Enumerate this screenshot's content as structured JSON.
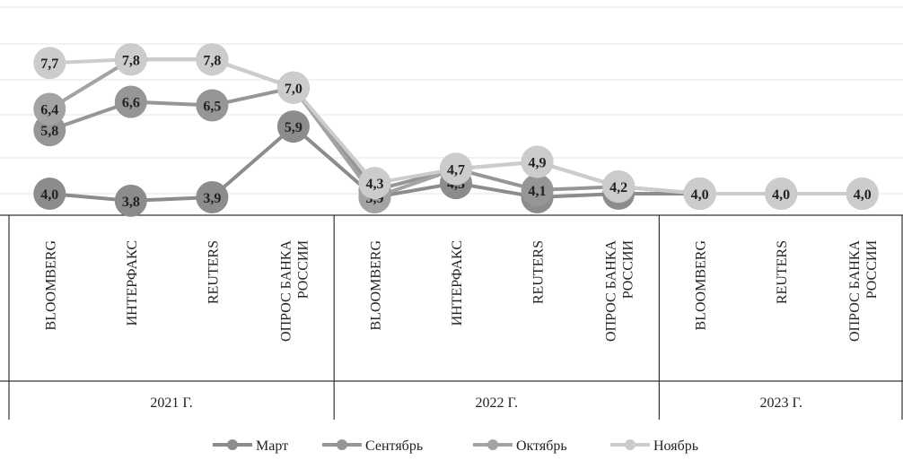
{
  "chart_data": {
    "type": "line",
    "title": "",
    "xlabel": "",
    "ylabel": "",
    "ylim": [
      3,
      8.7
    ],
    "grid": true,
    "legend_position": "bottom",
    "categories": [
      "BLOOMBERG",
      "ИНТЕРФАКС",
      "REUTERS",
      "ОПРОС БАНКА РОССИИ",
      "BLOOMBERG",
      "ИНТЕРФАКС",
      "REUTERS",
      "ОПРОС БАНКА РОССИИ",
      "BLOOMBERG",
      "REUTERS",
      "ОПРОС БАНКА РОССИИ"
    ],
    "category_lines": [
      [
        "BLOOMBERG"
      ],
      [
        "ИНТЕРФАКС"
      ],
      [
        "REUTERS"
      ],
      [
        "ОПРОС БАНКА",
        "РОССИИ"
      ],
      [
        "BLOOMBERG"
      ],
      [
        "ИНТЕРФАКС"
      ],
      [
        "REUTERS"
      ],
      [
        "ОПРОС БАНКА",
        "РОССИИ"
      ],
      [
        "BLOOMBERG"
      ],
      [
        "REUTERS"
      ],
      [
        "ОПРОС БАНКА",
        "РОССИИ"
      ]
    ],
    "groups": [
      {
        "label": "2021  Г.",
        "start": 0,
        "count": 4
      },
      {
        "label": "2022  Г.",
        "start": 4,
        "count": 4
      },
      {
        "label": "2023  Г.",
        "start": 8,
        "count": 3
      }
    ],
    "series": [
      {
        "name": "Март",
        "color": "#8c8c8c",
        "values": [
          4.0,
          3.8,
          3.9,
          5.9,
          3.9,
          4.3,
          3.9,
          4.0,
          4.0,
          4.0,
          4.0
        ],
        "labels": [
          "4,0",
          "3,8",
          "3,9",
          "5,9",
          "3,9",
          "4,3",
          "3,9",
          "4,0",
          "4,0",
          "4,0",
          "4,0"
        ]
      },
      {
        "name": "Сентябрь",
        "color": "#969696",
        "values": [
          5.8,
          6.6,
          6.5,
          7.0,
          4.1,
          4.7,
          4.1,
          4.2,
          4.0,
          null,
          null
        ],
        "labels": [
          "5,8",
          "6,6",
          "6,5",
          "7,0",
          "4,1",
          "4,7",
          "4,1",
          "4,2",
          "4,0",
          "",
          ""
        ]
      },
      {
        "name": "Октябрь",
        "color": "#a3a3a3",
        "values": [
          6.4,
          7.8,
          7.8,
          7.0,
          3.9,
          4.7,
          4.9,
          4.2,
          4.0,
          null,
          null
        ],
        "labels": [
          "6,4",
          "7,8",
          "7,8",
          "7,0",
          "3,9",
          "4,7",
          "4,9",
          "4,2",
          "4,0",
          "",
          ""
        ]
      },
      {
        "name": "Ноябрь",
        "color": "#cccccc",
        "values": [
          7.7,
          7.8,
          7.8,
          7.0,
          4.3,
          4.7,
          4.9,
          4.2,
          4.0,
          4.0,
          4.0
        ],
        "labels": [
          "7,7",
          "7,8",
          "7,8",
          "7,0",
          "4,3",
          "4,7",
          "4,9",
          "4,2",
          "4,0",
          "4,0",
          "4,0"
        ]
      }
    ]
  }
}
